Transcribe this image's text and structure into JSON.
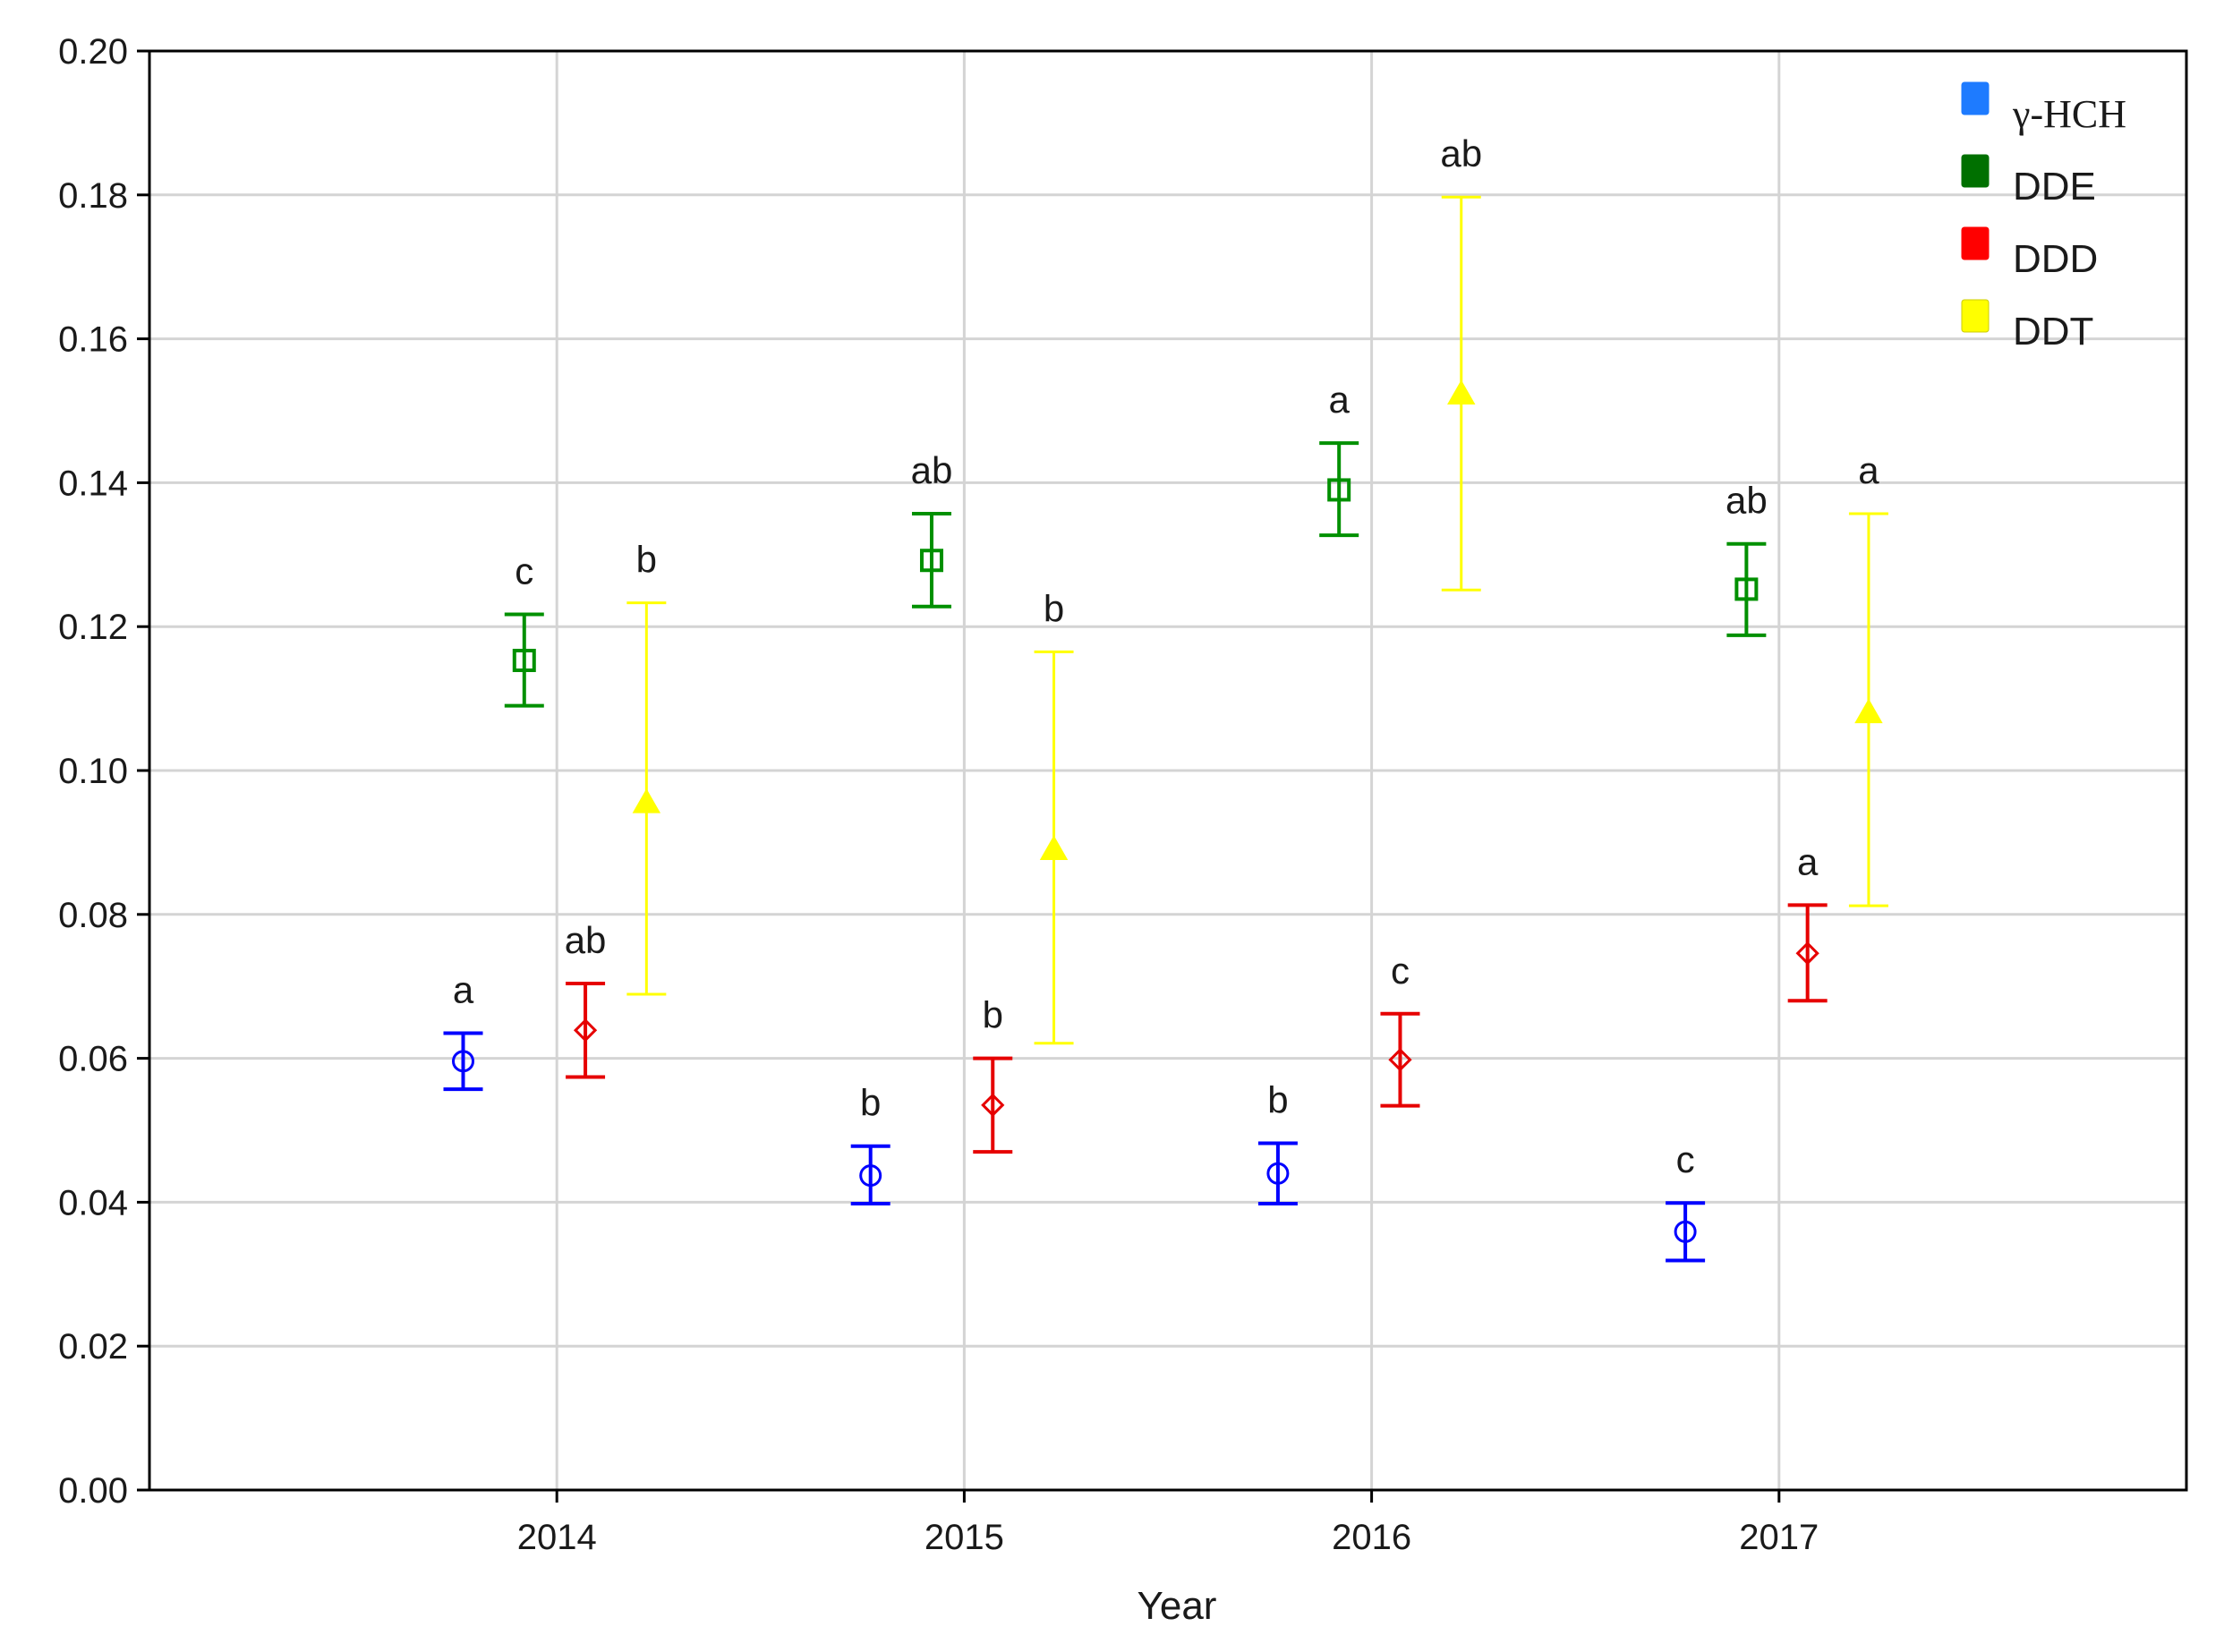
{
  "chart_data": {
    "type": "scatter",
    "subtype": "mean with error bars",
    "xlabel": "Year",
    "ylabel": "",
    "categories": [
      "2014",
      "2015",
      "2016",
      "2017"
    ],
    "ylim": [
      0,
      0.2
    ],
    "yticks": [
      "0.00",
      "0.02",
      "0.04",
      "0.06",
      "0.08",
      "0.10",
      "0.12",
      "0.14",
      "0.16",
      "0.18",
      "0.20"
    ],
    "grid": true,
    "legend_position": "top-right",
    "series": [
      {
        "name": "γ-HCH",
        "color": "#0000ff",
        "legend_color": "#1e7bff",
        "marker": "circle",
        "offset": -0.23,
        "values": [
          0.0596,
          0.0437,
          0.044,
          0.0359
        ],
        "lower": [
          0.0557,
          0.0398,
          0.0398,
          0.0319
        ],
        "upper": [
          0.0635,
          0.0478,
          0.0482,
          0.0399
        ],
        "labels": [
          "a",
          "b",
          "b",
          "c"
        ]
      },
      {
        "name": "DDE",
        "color": "#009000",
        "legend_color": "#007000",
        "marker": "square",
        "offset": -0.08,
        "values": [
          0.1153,
          0.1292,
          0.139,
          0.1252
        ],
        "lower": [
          0.109,
          0.1228,
          0.1327,
          0.1188
        ],
        "upper": [
          0.1217,
          0.1357,
          0.1455,
          0.1315
        ],
        "labels": [
          "c",
          "ab",
          "a",
          "ab"
        ]
      },
      {
        "name": "DDD",
        "color": "#e60000",
        "legend_color": "#ff0000",
        "marker": "diamond",
        "offset": 0.07,
        "values": [
          0.0639,
          0.0535,
          0.0598,
          0.0746
        ],
        "lower": [
          0.0574,
          0.047,
          0.0534,
          0.068
        ],
        "upper": [
          0.0704,
          0.06,
          0.0662,
          0.0813
        ],
        "labels": [
          "ab",
          "b",
          "c",
          "a"
        ]
      },
      {
        "name": "DDT",
        "color": "#ffff00",
        "legend_color": "#ffff00",
        "marker": "triangle",
        "offset": 0.22,
        "values": [
          0.0955,
          0.089,
          0.1523,
          0.108
        ],
        "lower": [
          0.0689,
          0.0621,
          0.1251,
          0.0812
        ],
        "upper": [
          0.1233,
          0.1165,
          0.1797,
          0.1357
        ],
        "labels": [
          "b",
          "b",
          "ab",
          "a"
        ]
      }
    ]
  }
}
